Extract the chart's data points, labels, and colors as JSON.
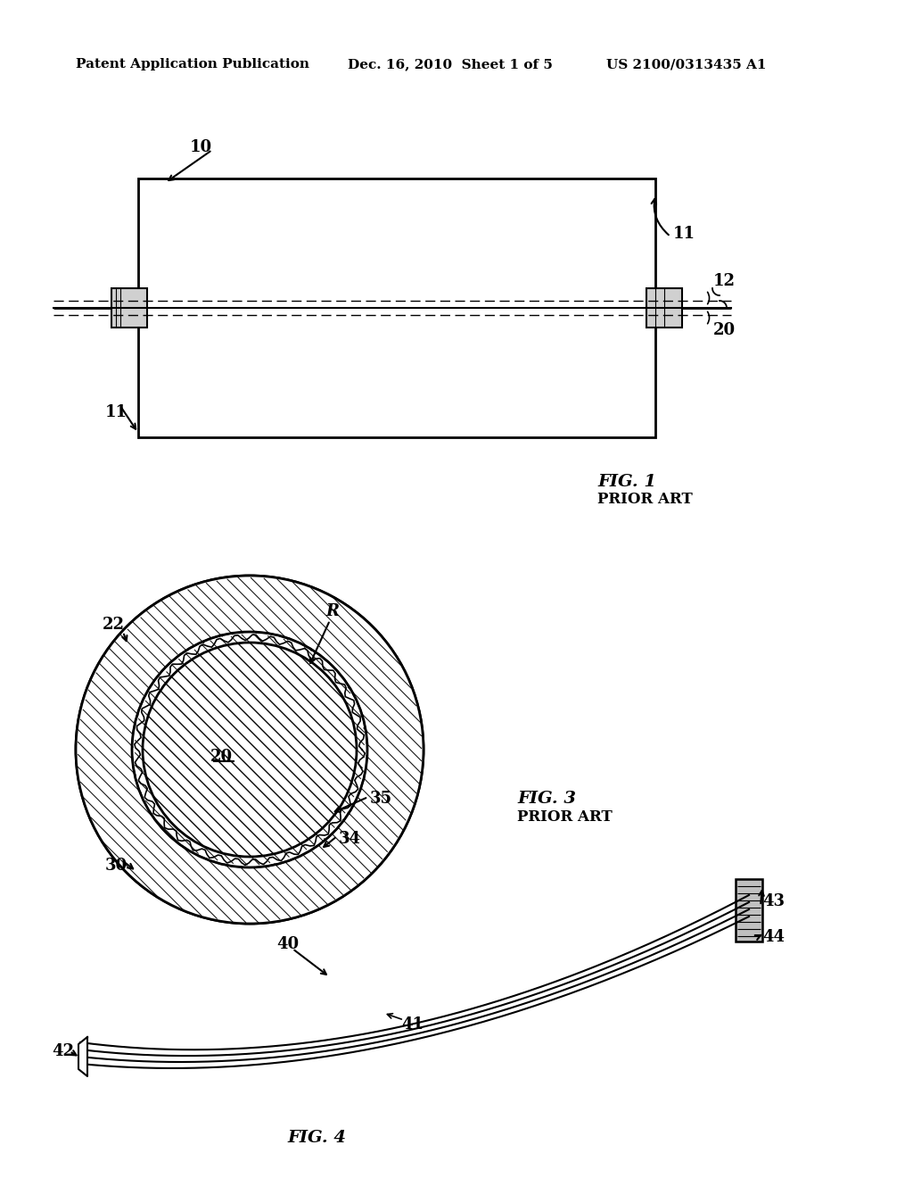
{
  "background_color": "#ffffff",
  "header_left": "Patent Application Publication",
  "header_center": "Dec. 16, 2010  Sheet 1 of 5",
  "header_right": "US 2100/0313435 A1",
  "fig1_label": "FIG. 1",
  "fig1_sublabel": "PRIOR ART",
  "fig3_label": "FIG. 3",
  "fig3_sublabel": "PRIOR ART",
  "fig4_label": "FIG. 4"
}
